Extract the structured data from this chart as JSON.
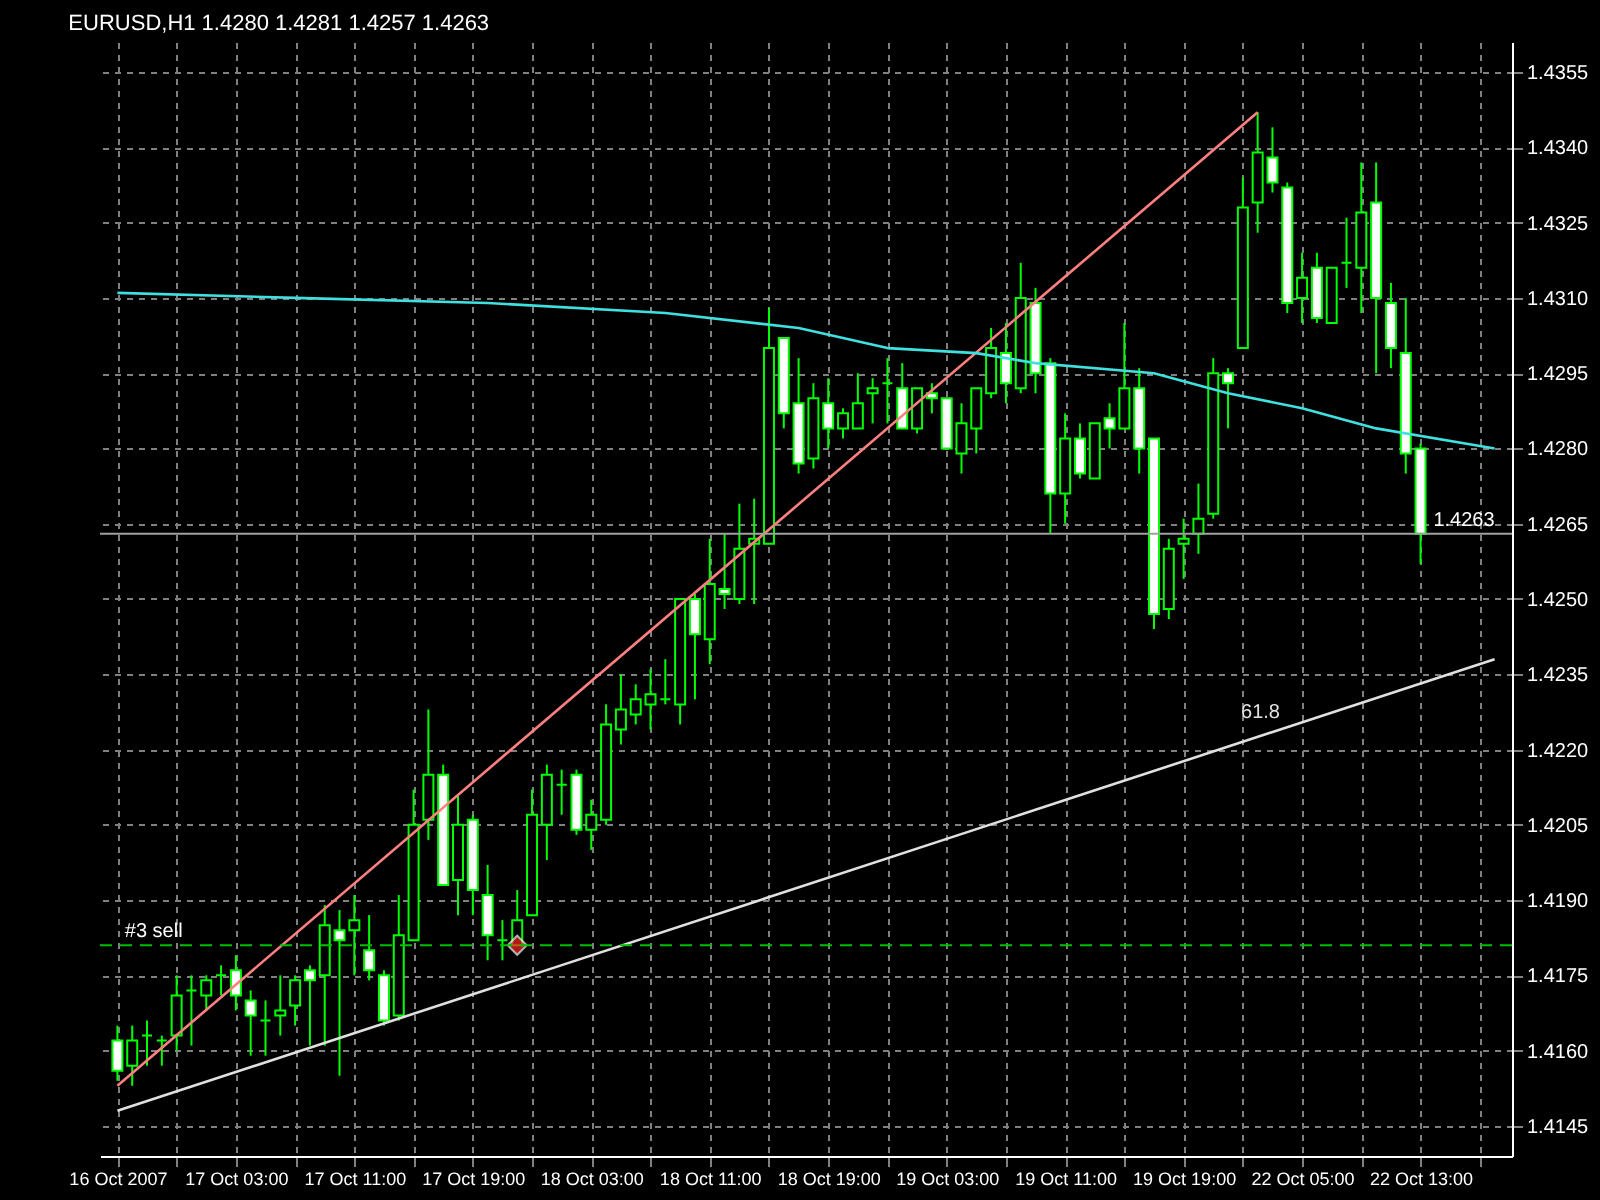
{
  "chart_data": {
    "type": "candlestick",
    "title": "EURUSD,H1  1.4280 1.4281 1.4257 1.4263",
    "categories": [
      "16 Oct 2007",
      null,
      null,
      null,
      null,
      null,
      null,
      null,
      "17 Oct 03:00",
      null,
      null,
      null,
      null,
      null,
      null,
      null,
      "17 Oct 11:00",
      null,
      null,
      null,
      null,
      null,
      null,
      null,
      "17 Oct 19:00",
      null,
      null,
      null,
      null,
      null,
      null,
      null,
      "18 Oct 03:00",
      null,
      null,
      null,
      null,
      null,
      null,
      null,
      "18 Oct 11:00",
      null,
      null,
      null,
      null,
      null,
      null,
      null,
      "18 Oct 19:00",
      null,
      null,
      null,
      null,
      null,
      null,
      null,
      "19 Oct 03:00",
      null,
      null,
      null,
      null,
      null,
      null,
      null,
      "19 Oct 11:00",
      null,
      null,
      null,
      null,
      null,
      null,
      null,
      "19 Oct 19:00",
      null,
      null,
      null,
      null,
      null,
      null,
      null,
      "22 Oct 05:00",
      null,
      null,
      null,
      null,
      null,
      null,
      null,
      "22 Oct 13:00",
      null,
      null,
      null,
      null,
      null
    ],
    "color": "#00ff00",
    "ohlc": [
      [
        1.4162,
        1.4165,
        1.4154,
        1.4156
      ],
      [
        1.4157,
        1.4165,
        1.4153,
        1.4162
      ],
      [
        1.4163,
        1.4166,
        1.4157,
        1.4163
      ],
      [
        1.4162,
        1.4163,
        1.4157,
        1.4162
      ],
      [
        1.4163,
        1.4175,
        1.416,
        1.4171
      ],
      [
        1.4172,
        1.4175,
        1.4161,
        1.4172
      ],
      [
        1.4171,
        1.4175,
        1.4168,
        1.4174
      ],
      [
        1.4175,
        1.4177,
        1.4171,
        1.4175
      ],
      [
        1.4176,
        1.4179,
        1.4168,
        1.4171
      ],
      [
        1.417,
        1.4172,
        1.4159,
        1.4167
      ],
      [
        1.4166,
        1.417,
        1.4159,
        1.4166
      ],
      [
        1.4167,
        1.4175,
        1.4163,
        1.4168
      ],
      [
        1.4169,
        1.4175,
        1.4165,
        1.4174
      ],
      [
        1.4176,
        1.4177,
        1.4161,
        1.4174
      ],
      [
        1.4175,
        1.4189,
        1.4161,
        1.4185
      ],
      [
        1.4184,
        1.4188,
        1.4155,
        1.4182
      ],
      [
        1.4184,
        1.4191,
        1.4175,
        1.4186
      ],
      [
        1.418,
        1.4187,
        1.4174,
        1.4176
      ],
      [
        1.4175,
        1.4176,
        1.4165,
        1.4166
      ],
      [
        1.4167,
        1.4191,
        1.4166,
        1.4183
      ],
      [
        1.4182,
        1.4212,
        1.4182,
        1.4205
      ],
      [
        1.4206,
        1.4228,
        1.4202,
        1.4215
      ],
      [
        1.4215,
        1.4217,
        1.4193,
        1.4193
      ],
      [
        1.4194,
        1.4211,
        1.4187,
        1.4205
      ],
      [
        1.4206,
        1.4207,
        1.4187,
        1.4192
      ],
      [
        1.4191,
        1.4197,
        1.4178,
        1.4183
      ],
      [
        1.4182,
        1.4186,
        1.4178,
        1.4182
      ],
      [
        1.4181,
        1.4192,
        1.4181,
        1.4186
      ],
      [
        1.4187,
        1.4212,
        1.4187,
        1.4207
      ],
      [
        1.4205,
        1.4217,
        1.4198,
        1.4215
      ],
      [
        1.4213,
        1.4216,
        1.4207,
        1.4213
      ],
      [
        1.4215,
        1.4216,
        1.4203,
        1.4204
      ],
      [
        1.4204,
        1.421,
        1.42,
        1.4207
      ],
      [
        1.4206,
        1.4229,
        1.4205,
        1.4225
      ],
      [
        1.4224,
        1.4235,
        1.4221,
        1.4228
      ],
      [
        1.4227,
        1.4233,
        1.4225,
        1.423
      ],
      [
        1.4229,
        1.4236,
        1.4224,
        1.4231
      ],
      [
        1.423,
        1.4238,
        1.4229,
        1.423
      ],
      [
        1.4229,
        1.425,
        1.4225,
        1.425
      ],
      [
        1.425,
        1.4251,
        1.423,
        1.4243
      ],
      [
        1.4242,
        1.4262,
        1.4237,
        1.4253
      ],
      [
        1.4252,
        1.4263,
        1.4248,
        1.4251
      ],
      [
        1.425,
        1.4269,
        1.4249,
        1.426
      ],
      [
        1.4261,
        1.427,
        1.4249,
        1.4262
      ],
      [
        1.4261,
        1.4308,
        1.4261,
        1.43
      ],
      [
        1.4302,
        1.4302,
        1.4284,
        1.4287
      ],
      [
        1.4289,
        1.4298,
        1.4275,
        1.4277
      ],
      [
        1.4278,
        1.4293,
        1.4276,
        1.429
      ],
      [
        1.4289,
        1.4294,
        1.428,
        1.4284
      ],
      [
        1.4284,
        1.4288,
        1.4282,
        1.4287
      ],
      [
        1.4284,
        1.4295,
        1.4284,
        1.4289
      ],
      [
        1.4291,
        1.4294,
        1.4285,
        1.4292
      ],
      [
        1.4293,
        1.4298,
        1.4285,
        1.4293
      ],
      [
        1.4292,
        1.4297,
        1.4284,
        1.4284
      ],
      [
        1.4284,
        1.4292,
        1.4283,
        1.4292
      ],
      [
        1.4291,
        1.4293,
        1.4287,
        1.429
      ],
      [
        1.429,
        1.429,
        1.428,
        1.428
      ],
      [
        1.4279,
        1.4289,
        1.4275,
        1.4285
      ],
      [
        1.4284,
        1.4292,
        1.4279,
        1.4292
      ],
      [
        1.4291,
        1.4304,
        1.429,
        1.43
      ],
      [
        1.4299,
        1.4305,
        1.4289,
        1.4293
      ],
      [
        1.4292,
        1.4317,
        1.4291,
        1.431
      ],
      [
        1.4309,
        1.4312,
        1.4291,
        1.4295
      ],
      [
        1.4297,
        1.4298,
        1.4263,
        1.4271
      ],
      [
        1.4271,
        1.4287,
        1.4265,
        1.4282
      ],
      [
        1.4282,
        1.4285,
        1.4274,
        1.4275
      ],
      [
        1.4274,
        1.4285,
        1.4274,
        1.4285
      ],
      [
        1.4286,
        1.4289,
        1.428,
        1.4284
      ],
      [
        1.4284,
        1.4305,
        1.4284,
        1.4292
      ],
      [
        1.4292,
        1.4296,
        1.4275,
        1.428
      ],
      [
        1.4282,
        1.4282,
        1.4244,
        1.4247
      ],
      [
        1.4248,
        1.4262,
        1.4246,
        1.426
      ],
      [
        1.4261,
        1.4266,
        1.4254,
        1.4262
      ],
      [
        1.4263,
        1.4273,
        1.4259,
        1.4266
      ],
      [
        1.4267,
        1.4298,
        1.4266,
        1.4295
      ],
      [
        1.4295,
        1.4296,
        1.4284,
        1.4293
      ],
      [
        1.43,
        1.4334,
        1.43,
        1.4328
      ],
      [
        1.4329,
        1.4347,
        1.4323,
        1.4339
      ],
      [
        1.4338,
        1.4344,
        1.4331,
        1.4333
      ],
      [
        1.4332,
        1.4333,
        1.4307,
        1.4309
      ],
      [
        1.431,
        1.4319,
        1.4305,
        1.4314
      ],
      [
        1.4316,
        1.4319,
        1.4305,
        1.4306
      ],
      [
        1.4305,
        1.4316,
        1.4305,
        1.4316
      ],
      [
        1.4317,
        1.4326,
        1.4312,
        1.4317
      ],
      [
        1.4316,
        1.4337,
        1.4307,
        1.4327
      ],
      [
        1.4329,
        1.4337,
        1.4295,
        1.431
      ],
      [
        1.4309,
        1.4313,
        1.4296,
        1.43
      ],
      [
        1.4299,
        1.431,
        1.4275,
        1.4279
      ],
      [
        1.428,
        1.4281,
        1.4257,
        1.4263
      ],
      null,
      null,
      null,
      null,
      null
    ],
    "series": [
      {
        "type": "line",
        "color": "#ff8080",
        "values": [
          1.4153,
          null,
          null,
          null,
          null,
          null,
          null,
          null,
          null,
          null,
          null,
          null,
          null,
          null,
          null,
          null,
          null,
          null,
          null,
          null,
          null,
          null,
          null,
          null,
          null,
          null,
          null,
          null,
          null,
          null,
          null,
          null,
          null,
          null,
          null,
          null,
          null,
          null,
          null,
          null,
          null,
          null,
          null,
          null,
          null,
          null,
          null,
          null,
          null,
          null,
          null,
          null,
          null,
          null,
          null,
          null,
          null,
          null,
          null,
          null,
          null,
          null,
          null,
          null,
          null,
          null,
          null,
          null,
          null,
          null,
          null,
          null,
          null,
          null,
          null,
          null,
          null,
          1.4347,
          null,
          null,
          null,
          null,
          null,
          null,
          null,
          null,
          null,
          null,
          null,
          null,
          null,
          null,
          null,
          null
        ]
      },
      {
        "type": "line",
        "color": "#40e0e0",
        "values": [
          1.4311,
          null,
          null,
          null,
          null,
          null,
          null,
          null,
          null,
          null,
          null,
          null,
          1.431,
          null,
          null,
          null,
          null,
          null,
          null,
          null,
          null,
          null,
          null,
          null,
          null,
          1.4309,
          null,
          null,
          null,
          null,
          null,
          null,
          null,
          null,
          null,
          null,
          null,
          1.4307,
          null,
          null,
          null,
          null,
          null,
          null,
          null,
          null,
          1.4304,
          null,
          null,
          null,
          null,
          null,
          1.43,
          null,
          null,
          null,
          null,
          null,
          1.4299,
          null,
          null,
          null,
          1.4297,
          null,
          null,
          null,
          null,
          null,
          null,
          null,
          1.4295,
          null,
          null,
          null,
          null,
          1.4291,
          null,
          null,
          null,
          null,
          1.4288,
          null,
          null,
          null,
          null,
          1.4284,
          null,
          null,
          null,
          null,
          null,
          null,
          null,
          1.428
        ]
      },
      {
        "type": "line",
        "name": "61.8",
        "color": "#e0e0e0",
        "values": [
          1.4148,
          null,
          null,
          null,
          null,
          null,
          null,
          null,
          null,
          null,
          null,
          null,
          null,
          null,
          null,
          null,
          null,
          null,
          null,
          null,
          null,
          null,
          null,
          null,
          null,
          null,
          null,
          null,
          null,
          null,
          null,
          null,
          null,
          null,
          null,
          null,
          null,
          null,
          null,
          null,
          null,
          null,
          null,
          null,
          null,
          null,
          null,
          null,
          null,
          null,
          null,
          null,
          null,
          null,
          null,
          null,
          null,
          null,
          null,
          null,
          null,
          null,
          null,
          null,
          null,
          null,
          null,
          null,
          null,
          null,
          null,
          null,
          null,
          null,
          null,
          null,
          null,
          null,
          null,
          null,
          null,
          null,
          null,
          null,
          null,
          null,
          null,
          null,
          null,
          null,
          null,
          null,
          null,
          1.4238
        ]
      },
      {
        "type": "scatter",
        "marker": "diamond",
        "color": "#ff2020",
        "values": [
          null,
          null,
          null,
          null,
          null,
          null,
          null,
          null,
          null,
          null,
          null,
          null,
          null,
          null,
          null,
          null,
          null,
          null,
          null,
          null,
          null,
          null,
          null,
          null,
          null,
          null,
          null,
          1.4181,
          null,
          null,
          null,
          null,
          null,
          null,
          null,
          null,
          null,
          null,
          null,
          null,
          null,
          null,
          null,
          null,
          null,
          null,
          null,
          null,
          null,
          null,
          null,
          null,
          null,
          null,
          null,
          null,
          null,
          null,
          null,
          null,
          null,
          null,
          null,
          null,
          null,
          null,
          null,
          null,
          null,
          null,
          null,
          null,
          null,
          null,
          null,
          null,
          null,
          null,
          null,
          null,
          null,
          null,
          null,
          null,
          null,
          null,
          null,
          null,
          null,
          null,
          null,
          null,
          null,
          null
        ]
      }
    ],
    "ref_lines": [
      {
        "axis": "y",
        "value": 1.4181,
        "label": "#3 sell",
        "color": "#00c000",
        "line_style": "dashed"
      },
      {
        "axis": "y",
        "value": 1.4263,
        "label": "1.4263",
        "color": "#a0a0a0",
        "line_style": "solid"
      }
    ],
    "ylim": [
      1.4139,
      1.4361
    ],
    "yticks": [
      1.4145,
      {
        "value": 1.416,
        "label": "1.4160"
      },
      1.4175,
      {
        "value": 1.419,
        "label": "1.4190"
      },
      1.4205,
      {
        "value": 1.422,
        "label": "1.4220"
      },
      1.4235,
      {
        "value": 1.425,
        "label": "1.4250"
      },
      1.4265,
      {
        "value": 1.428,
        "label": "1.4280"
      },
      1.4295,
      {
        "value": 1.431,
        "label": "1.4310"
      },
      1.4325,
      {
        "value": 1.434,
        "label": "1.4340"
      },
      1.4355
    ],
    "grid": true
  }
}
